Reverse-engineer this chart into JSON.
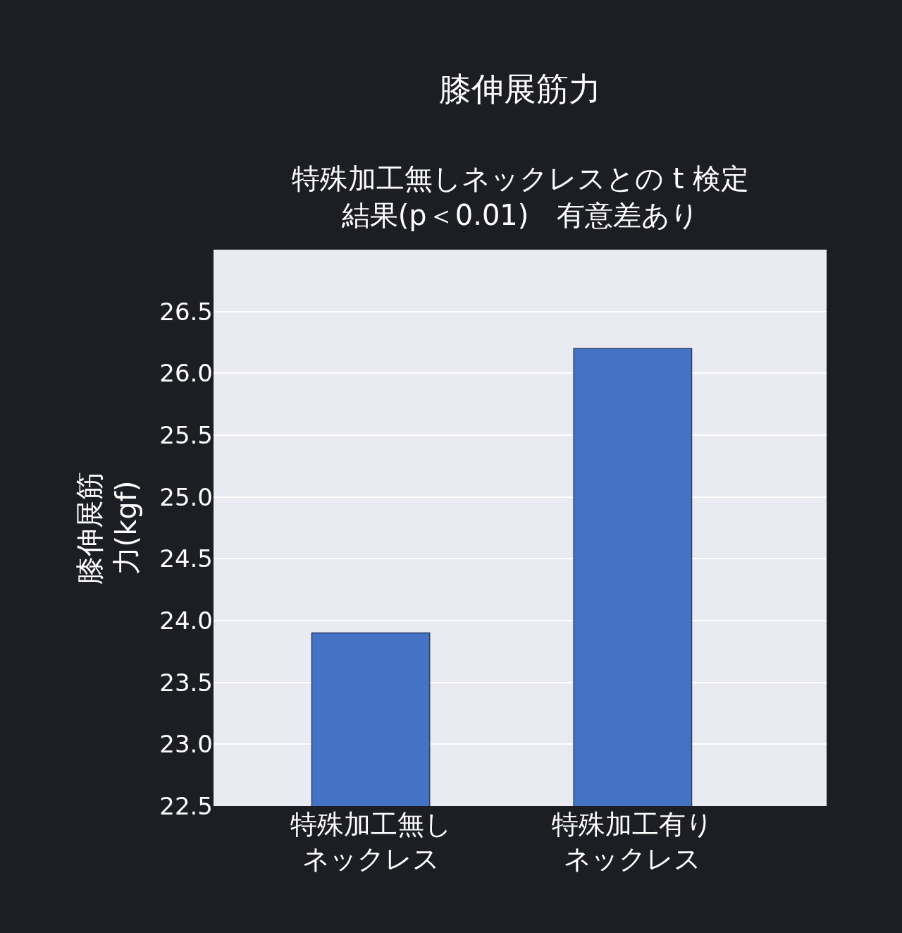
{
  "chart_data": {
    "type": "bar",
    "title": "膝伸展筋力",
    "subtitle": "特殊加工無しネックレスとの t 検定結果(p＜0.01)　有意差あり",
    "ylabel": "膝伸展筋力(kgf)",
    "categories": [
      "特殊加工無しネックレス",
      "特殊加工有りネックレス"
    ],
    "values": [
      23.9,
      26.2
    ],
    "color": "#4472c4",
    "ylim": [
      22.5,
      27.0
    ],
    "yticks": [
      22.5,
      {
        "value": 23,
        "label": "23.0"
      },
      23.5,
      {
        "value": 24,
        "label": "24.0"
      },
      24.5,
      {
        "value": 25,
        "label": "25.0"
      },
      25.5,
      {
        "value": 26,
        "label": "26.0"
      },
      26.5
    ],
    "grid": "y",
    "legend": false
  }
}
